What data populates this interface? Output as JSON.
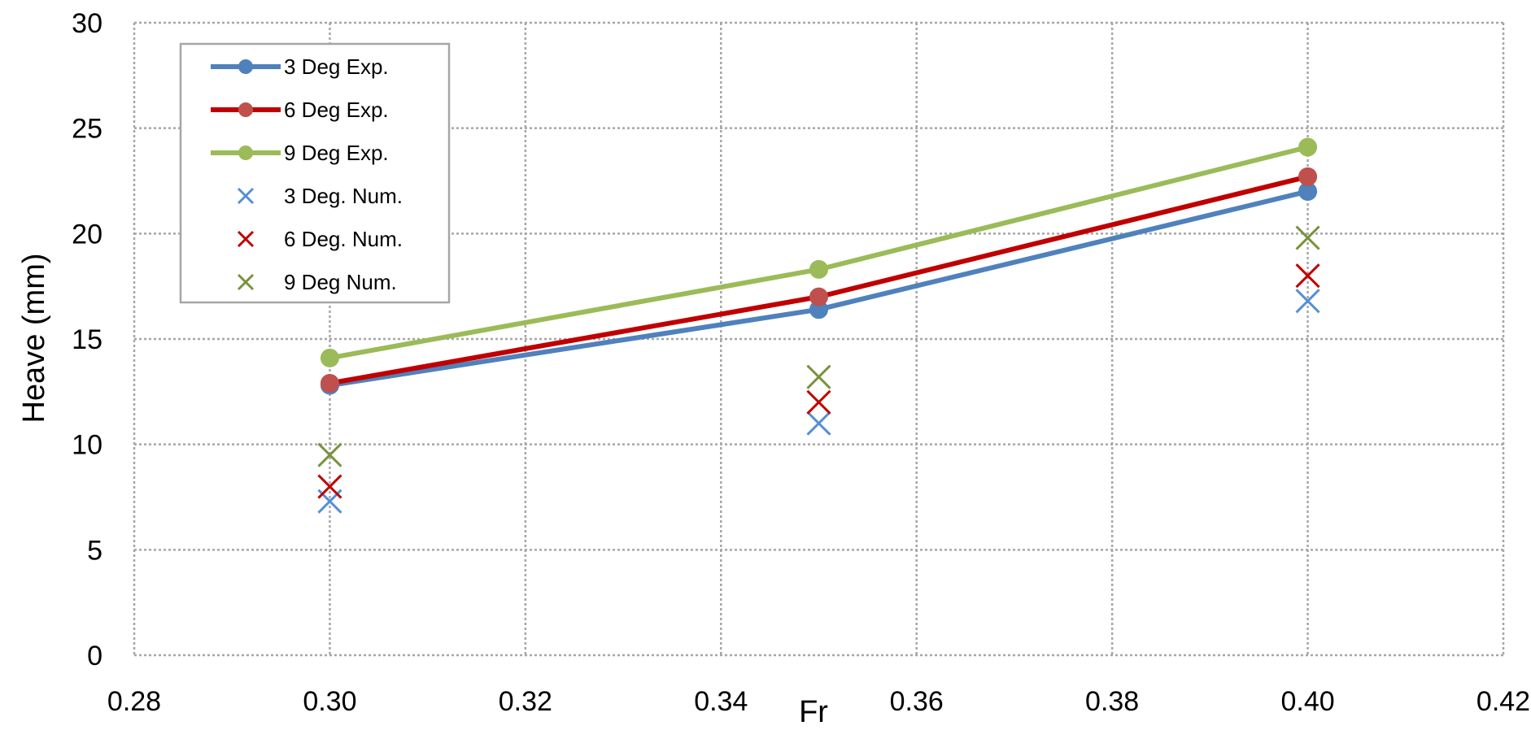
{
  "chart_data": {
    "type": "line",
    "title": "",
    "xlabel": "Fr",
    "ylabel": "Heave (mm)",
    "xlim": [
      0.28,
      0.42
    ],
    "ylim": [
      0,
      30
    ],
    "x_ticks": [
      0.28,
      0.3,
      0.32,
      0.34,
      0.36,
      0.38,
      0.4,
      0.42
    ],
    "x_tick_labels": [
      "0.28",
      "0.30",
      "0.32",
      "0.34",
      "0.36",
      "0.38",
      "0.40",
      "0.42"
    ],
    "y_ticks": [
      0,
      5,
      10,
      15,
      20,
      25,
      30
    ],
    "y_tick_labels": [
      "0",
      "5",
      "10",
      "15",
      "20",
      "25",
      "30"
    ],
    "grid": true,
    "legend_position": "top-left",
    "series": [
      {
        "name": "3 Deg Exp.",
        "kind": "line-marker",
        "color": "#4F81BD",
        "x": [
          0.3,
          0.35,
          0.4
        ],
        "y": [
          12.8,
          16.4,
          22.0
        ]
      },
      {
        "name": "6 Deg Exp.",
        "kind": "line-marker",
        "color": "#C0504D",
        "line_color": "#C00000",
        "x": [
          0.3,
          0.35,
          0.4
        ],
        "y": [
          12.9,
          17.0,
          22.7
        ]
      },
      {
        "name": "9 Deg Exp.",
        "kind": "line-marker",
        "color": "#9BBB59",
        "x": [
          0.3,
          0.35,
          0.4
        ],
        "y": [
          14.1,
          18.3,
          24.1
        ]
      },
      {
        "name": "3 Deg. Num.",
        "kind": "x-marker",
        "color": "#558ED5",
        "x": [
          0.3,
          0.35,
          0.4
        ],
        "y": [
          7.3,
          11.0,
          16.8
        ]
      },
      {
        "name": "6 Deg. Num.",
        "kind": "x-marker",
        "color": "#C00000",
        "x": [
          0.3,
          0.35,
          0.4
        ],
        "y": [
          8.0,
          12.0,
          18.0
        ]
      },
      {
        "name": "9 Deg Num.",
        "kind": "x-marker",
        "color": "#77933C",
        "x": [
          0.3,
          0.35,
          0.4
        ],
        "y": [
          9.5,
          13.2,
          19.8
        ]
      }
    ]
  }
}
